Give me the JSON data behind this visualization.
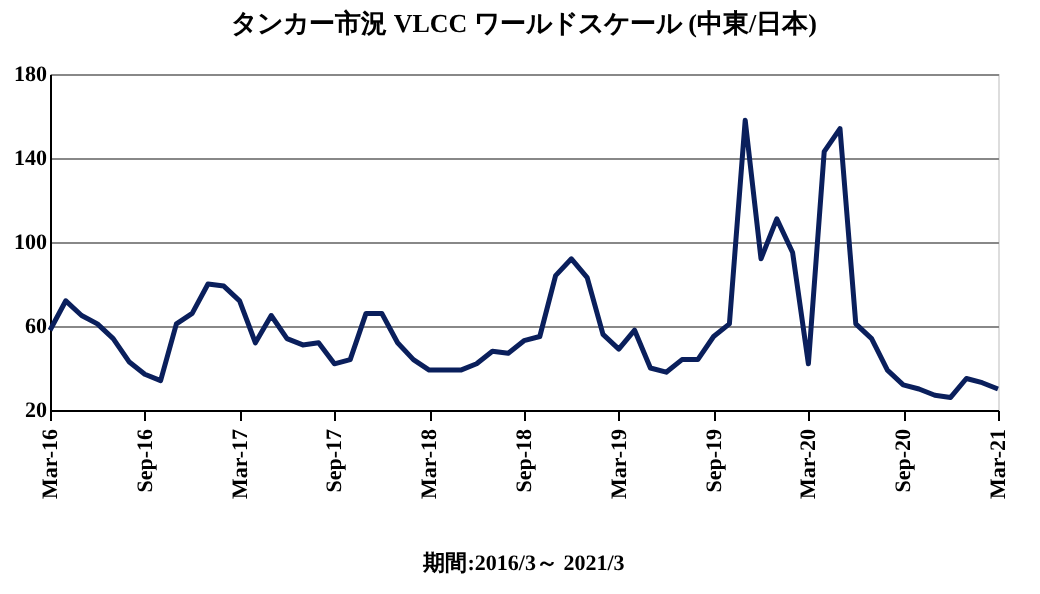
{
  "chart_data": {
    "type": "line",
    "title": "タンカー市況 VLCC ワールドスケール (中東/日本)",
    "categories": [
      "Mar-16",
      null,
      null,
      null,
      null,
      null,
      "Sep-16",
      null,
      null,
      null,
      null,
      null,
      "Mar-17",
      null,
      null,
      null,
      null,
      null,
      "Sep-17",
      null,
      null,
      null,
      null,
      null,
      "Mar-18",
      null,
      null,
      null,
      null,
      null,
      "Sep-18",
      null,
      null,
      null,
      null,
      null,
      "Mar-19",
      null,
      null,
      null,
      null,
      null,
      "Sep-19",
      null,
      null,
      null,
      null,
      null,
      "Mar-20",
      null,
      null,
      null,
      null,
      null,
      "Sep-20",
      null,
      null,
      null,
      null,
      null,
      "Mar-21"
    ],
    "series": [
      {
        "color": "#0a1f5c",
        "values": [
          58,
          72,
          65,
          61,
          54,
          43,
          37,
          34,
          61,
          66,
          80,
          79,
          72,
          52,
          65,
          54,
          51,
          52,
          42,
          44,
          66,
          66,
          52,
          44,
          39,
          39,
          39,
          42,
          48,
          47,
          53,
          55,
          84,
          92,
          83,
          56,
          49,
          58,
          40,
          38,
          44,
          44,
          55,
          61,
          158,
          92,
          111,
          95,
          42,
          143,
          154,
          61,
          54,
          39,
          32,
          30,
          27,
          26,
          35,
          33,
          30
        ]
      }
    ],
    "ylim": [
      20,
      180
    ],
    "yticks": [
      20,
      60,
      100,
      140,
      180
    ],
    "grid": "y",
    "legend": false,
    "marker": "none",
    "line_style": "solid",
    "annotations": [
      "期間:2016/3～ 2021/3"
    ]
  }
}
